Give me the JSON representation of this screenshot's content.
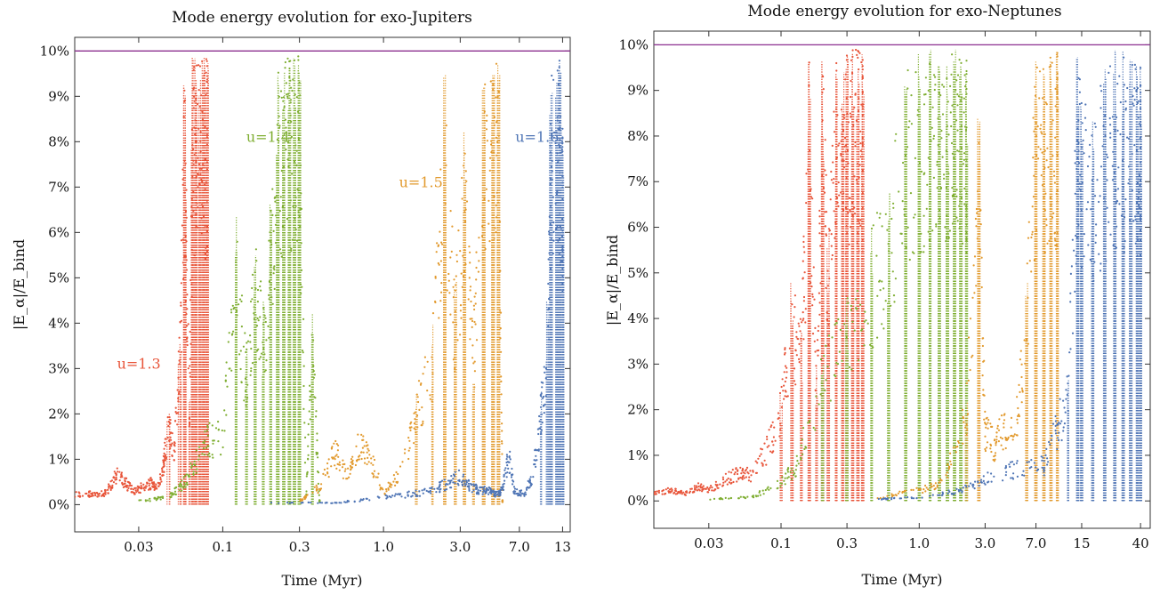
{
  "chart_data": [
    {
      "type": "scatter",
      "title": "Mode energy evolution for exo-Jupiters",
      "xlabel": "Time (Myr)",
      "ylabel": "|E_α|/E_bind",
      "x_scale": "log",
      "xlim": [
        0.012,
        14.5
      ],
      "ylim": [
        -0.6,
        10.3
      ],
      "x_ticks": [
        0.03,
        0.1,
        0.3,
        1.0,
        3.0,
        7.0,
        13
      ],
      "x_tick_labels": [
        "0.03",
        "0.1",
        "0.3",
        "1.0",
        "3.0",
        "7.0",
        "13"
      ],
      "y_ticks": [
        0,
        1,
        2,
        3,
        4,
        5,
        6,
        7,
        8,
        9,
        10
      ],
      "y_tick_labels": [
        "0%",
        "1%",
        "2%",
        "3%",
        "4%",
        "5%",
        "6%",
        "7%",
        "8%",
        "9%",
        "10%"
      ],
      "threshold": {
        "value": 10,
        "color": "#8b2f8f"
      },
      "series": [
        {
          "name": "u=1.3",
          "color": "#e8553a",
          "x": [
            0.012,
            0.015,
            0.018,
            0.02,
            0.022,
            0.025,
            0.028,
            0.032,
            0.036,
            0.04,
            0.043,
            0.046,
            0.05,
            0.054,
            0.058,
            0.062,
            0.065,
            0.068,
            0.072,
            0.076,
            0.08
          ],
          "y": [
            0.3,
            0.3,
            0.3,
            0.5,
            0.9,
            0.6,
            0.4,
            0.5,
            0.6,
            0.5,
            1.2,
            2.1,
            1.5,
            4.0,
            9.8,
            2.5,
            9.9,
            9.9,
            9.9,
            9.9,
            9.8
          ]
        },
        {
          "name": "u=1.4",
          "color": "#7fae32",
          "x": [
            0.03,
            0.045,
            0.055,
            0.065,
            0.08,
            0.1,
            0.12,
            0.14,
            0.16,
            0.18,
            0.2,
            0.22,
            0.24,
            0.26,
            0.28,
            0.3,
            0.33,
            0.36,
            0.4
          ],
          "y": [
            0.1,
            0.2,
            0.5,
            1.0,
            1.8,
            2.0,
            6.5,
            3.5,
            5.8,
            4.5,
            7.0,
            9.5,
            9.9,
            9.9,
            9.9,
            9.9,
            0.2,
            4.5,
            0.1
          ]
        },
        {
          "name": "u=1.5",
          "color": "#e29a2e",
          "x": [
            0.3,
            0.4,
            0.5,
            0.6,
            0.7,
            0.8,
            1.0,
            1.3,
            1.6,
            2.0,
            2.4,
            2.8,
            3.2,
            3.6,
            4.2,
            4.8,
            5.2,
            5.5
          ],
          "y": [
            0.1,
            0.5,
            1.5,
            0.8,
            1.6,
            1.5,
            0.3,
            1.0,
            2.5,
            4.0,
            9.5,
            5.0,
            8.5,
            4.0,
            9.3,
            9.7,
            9.9,
            0.1
          ]
        },
        {
          "name": "u=1.6",
          "color": "#4f75b5",
          "x": [
            0.2,
            0.5,
            1.0,
            1.5,
            2.0,
            2.5,
            3.0,
            3.5,
            4.0,
            4.5,
            5.0,
            5.5,
            6.0,
            6.5,
            7.5,
            8.5,
            9.5,
            10.5,
            11.0,
            12.0,
            12.5,
            13.0
          ],
          "y": [
            0.05,
            0.05,
            0.2,
            0.3,
            0.4,
            0.6,
            0.8,
            0.5,
            0.4,
            0.4,
            0.3,
            0.4,
            1.4,
            0.4,
            0.3,
            0.8,
            2.5,
            4.5,
            9.8,
            9.6,
            9.9,
            8.5
          ]
        }
      ],
      "annotations": [
        {
          "text": "u=1.3",
          "x": 0.022,
          "y": 3.0,
          "color": "#e8553a"
        },
        {
          "text": "u=1.4",
          "x": 0.14,
          "y": 8.0,
          "color": "#7fae32"
        },
        {
          "text": "u=1.5",
          "x": 1.25,
          "y": 7.0,
          "color": "#e29a2e"
        },
        {
          "text": "u=1.6",
          "x": 6.6,
          "y": 8.0,
          "color": "#4f75b5"
        }
      ]
    },
    {
      "type": "scatter",
      "title": "Mode energy evolution for exo-Neptunes",
      "xlabel": "Time (Myr)",
      "ylabel": "|E_α|/E_bind",
      "x_scale": "log",
      "xlim": [
        0.012,
        47
      ],
      "ylim": [
        -0.6,
        10.3
      ],
      "x_ticks": [
        0.03,
        0.1,
        0.3,
        1.0,
        3.0,
        7.0,
        15,
        40
      ],
      "x_tick_labels": [
        "0.03",
        "0.1",
        "0.3",
        "1.0",
        "3.0",
        "7.0",
        "15",
        "40"
      ],
      "y_ticks": [
        0,
        1,
        2,
        3,
        4,
        5,
        6,
        7,
        8,
        9,
        10
      ],
      "y_tick_labels": [
        "0%",
        "1%",
        "2%",
        "3%",
        "4%",
        "5%",
        "6%",
        "7%",
        "8%",
        "9%",
        "10%"
      ],
      "threshold": {
        "value": 10,
        "color": "#8b2f8f"
      },
      "series": [
        {
          "name": "u=1.3",
          "color": "#e8553a",
          "x": [
            0.012,
            0.016,
            0.02,
            0.025,
            0.03,
            0.04,
            0.05,
            0.06,
            0.08,
            0.1,
            0.12,
            0.14,
            0.16,
            0.18,
            0.2,
            0.22,
            0.25,
            0.28,
            0.3,
            0.33,
            0.36,
            0.39
          ],
          "y": [
            0.2,
            0.3,
            0.2,
            0.4,
            0.3,
            0.6,
            0.8,
            0.7,
            1.5,
            2.5,
            5.0,
            4.0,
            9.8,
            3.0,
            9.9,
            6.0,
            9.9,
            9.5,
            9.9,
            9.9,
            9.9,
            9.8
          ]
        },
        {
          "name": "u=1.4",
          "color": "#7fae32",
          "x": [
            0.03,
            0.06,
            0.1,
            0.13,
            0.2,
            0.3,
            0.45,
            0.6,
            0.8,
            1.0,
            1.2,
            1.4,
            1.6,
            1.8,
            2.0,
            2.2
          ],
          "y": [
            0.05,
            0.1,
            0.5,
            1.0,
            3.5,
            4.5,
            6.0,
            7.0,
            9.5,
            9.8,
            9.9,
            9.6,
            9.9,
            9.9,
            9.9,
            9.8
          ]
        },
        {
          "name": "u=1.5",
          "color": "#e29a2e",
          "x": [
            0.5,
            1.0,
            1.5,
            2.2,
            2.7,
            3.0,
            3.5,
            4.0,
            5.0,
            6.0,
            7.0,
            8.0,
            9.0,
            10.0
          ],
          "y": [
            0.1,
            0.3,
            0.5,
            2.5,
            8.5,
            2.0,
            1.5,
            2.0,
            2.0,
            5.0,
            9.8,
            9.5,
            9.9,
            9.9
          ]
        },
        {
          "name": "u=1.6",
          "color": "#4f75b5",
          "x": [
            0.5,
            1.0,
            2.0,
            3.0,
            5.0,
            8.0,
            10.0,
            12.0,
            14.0,
            15.0,
            18.0,
            22.0,
            26.0,
            30.0,
            34.0,
            38.0,
            40.0
          ],
          "y": [
            0.05,
            0.1,
            0.3,
            0.6,
            0.9,
            1.0,
            2.0,
            3.0,
            9.8,
            9.0,
            8.5,
            9.5,
            9.9,
            9.9,
            9.8,
            9.7,
            9.6
          ]
        }
      ],
      "annotations": []
    }
  ]
}
